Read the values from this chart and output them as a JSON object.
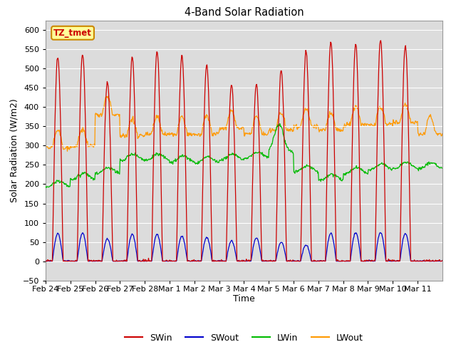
{
  "title": "4-Band Solar Radiation",
  "xlabel": "Time",
  "ylabel": "Solar Radiation (W/m2)",
  "ylim": [
    -50,
    625
  ],
  "yticks": [
    -50,
    0,
    50,
    100,
    150,
    200,
    250,
    300,
    350,
    400,
    450,
    500,
    550,
    600
  ],
  "plot_bg_color": "#dcdcdc",
  "grid_color": "white",
  "colors": {
    "SWin": "#cc0000",
    "SWout": "#0000cc",
    "LWin": "#00bb00",
    "LWout": "#ff9900"
  },
  "legend_box": {
    "text": "TZ_tmet",
    "facecolor": "#ffff99",
    "edgecolor": "#cc8800",
    "text_color": "#cc0000"
  },
  "x_tick_labels": [
    "Feb 24",
    "Feb 25",
    "Feb 26",
    "Feb 27",
    "Feb 28",
    "Mar 1",
    "Mar 2",
    "Mar 3",
    "Mar 4",
    "Mar 5",
    "Mar 6",
    "Mar 7",
    "Mar 8",
    "Mar 9",
    "Mar 10",
    "Mar 11"
  ],
  "n_days": 16,
  "n_per_day": 48
}
